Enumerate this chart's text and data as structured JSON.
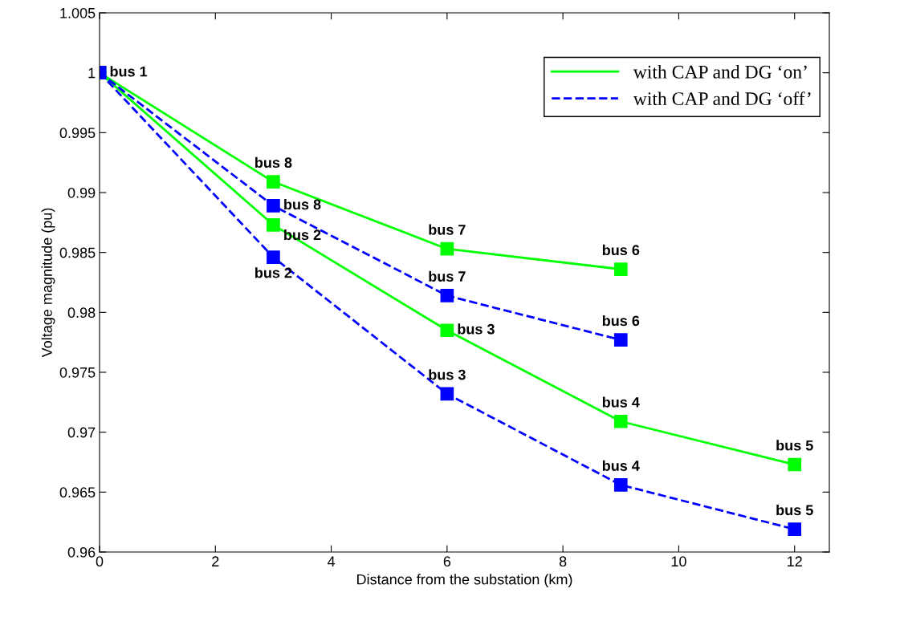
{
  "chart_data": {
    "type": "line",
    "xlabel": "Distance from the substation (km)",
    "ylabel": "Voltage magnitude (pu)",
    "xlim": [
      0,
      12.6
    ],
    "ylim": [
      0.96,
      1.005
    ],
    "xticks": [
      0,
      2,
      4,
      6,
      8,
      10,
      12
    ],
    "yticks": [
      0.96,
      0.965,
      0.97,
      0.975,
      0.98,
      0.985,
      0.99,
      0.995,
      {
        "value": 1,
        "label": "1"
      },
      1.005
    ],
    "marker": "square",
    "grid": false,
    "legend": "top right",
    "series": [
      {
        "name": "with CAP and DG ‘on’",
        "color": "#00ff00",
        "line_style": "solid",
        "x": [
          0,
          3,
          6,
          9
        ],
        "values": [
          1.0,
          0.9909,
          0.9853,
          0.9836
        ]
      },
      {
        "color": "#00ff00",
        "line_style": "solid",
        "x": [
          0,
          3,
          6,
          9,
          12
        ],
        "values": [
          1.0,
          0.9873,
          0.9785,
          0.9709,
          0.9673
        ]
      },
      {
        "name": "with CAP and DG ‘off’",
        "color": "#0000ff",
        "line_style": "dashed",
        "x": [
          0,
          3,
          6,
          9
        ],
        "values": [
          1.0,
          0.9889,
          0.9814,
          0.9777
        ]
      },
      {
        "color": "#0000ff",
        "line_style": "dashed",
        "x": [
          0,
          3,
          6,
          9,
          12
        ],
        "values": [
          1.0,
          0.9846,
          0.9732,
          0.9656,
          0.9619
        ]
      }
    ],
    "annotations": [
      {
        "text": "bus 1",
        "x": 0,
        "y": 1.0
      },
      {
        "text": "bus 8",
        "x": 3,
        "y": 0.9909
      },
      {
        "text": "bus 7",
        "x": 6,
        "y": 0.9853
      },
      {
        "text": "bus 6",
        "x": 9,
        "y": 0.9836
      },
      {
        "text": "bus 2",
        "x": 3,
        "y": 0.9873
      },
      {
        "text": "bus 3",
        "x": 6,
        "y": 0.9785
      },
      {
        "text": "bus 4",
        "x": 9,
        "y": 0.9709
      },
      {
        "text": "bus 5",
        "x": 12,
        "y": 0.9673
      },
      {
        "text": "bus 8",
        "x": 3,
        "y": 0.9889
      },
      {
        "text": "bus 7",
        "x": 6,
        "y": 0.9814
      },
      {
        "text": "bus 6",
        "x": 9,
        "y": 0.9777
      },
      {
        "text": "bus 2",
        "x": 3,
        "y": 0.9846
      },
      {
        "text": "bus 3",
        "x": 6,
        "y": 0.9732
      },
      {
        "text": "bus 4",
        "x": 9,
        "y": 0.9656
      },
      {
        "text": "bus 5",
        "x": 12,
        "y": 0.9619
      }
    ]
  }
}
